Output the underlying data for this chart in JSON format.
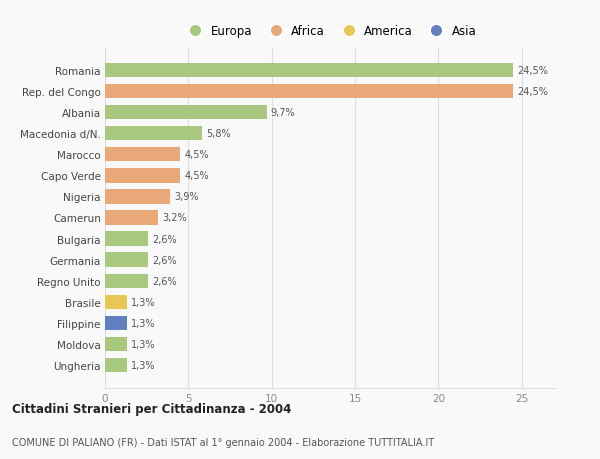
{
  "countries": [
    "Romania",
    "Rep. del Congo",
    "Albania",
    "Macedonia d/N.",
    "Marocco",
    "Capo Verde",
    "Nigeria",
    "Camerun",
    "Bulgaria",
    "Germania",
    "Regno Unito",
    "Brasile",
    "Filippine",
    "Moldova",
    "Ungheria"
  ],
  "values": [
    24.5,
    24.5,
    9.7,
    5.8,
    4.5,
    4.5,
    3.9,
    3.2,
    2.6,
    2.6,
    2.6,
    1.3,
    1.3,
    1.3,
    1.3
  ],
  "labels": [
    "24,5%",
    "24,5%",
    "9,7%",
    "5,8%",
    "4,5%",
    "4,5%",
    "3,9%",
    "3,2%",
    "2,6%",
    "2,6%",
    "2,6%",
    "1,3%",
    "1,3%",
    "1,3%",
    "1,3%"
  ],
  "continents": [
    "Europa",
    "Africa",
    "Europa",
    "Europa",
    "Africa",
    "Africa",
    "Africa",
    "Africa",
    "Europa",
    "Europa",
    "Europa",
    "America",
    "Asia",
    "Europa",
    "Europa"
  ],
  "continent_colors": {
    "Europa": "#a8c880",
    "Africa": "#e8a878",
    "America": "#e8c855",
    "Asia": "#6080c0"
  },
  "legend_order": [
    "Europa",
    "Africa",
    "America",
    "Asia"
  ],
  "title": "Cittadini Stranieri per Cittadinanza - 2004",
  "subtitle": "COMUNE DI PALIANO (FR) - Dati ISTAT al 1° gennaio 2004 - Elaborazione TUTTITALIA.IT",
  "xlim": [
    0,
    27
  ],
  "xticks": [
    0,
    5,
    10,
    15,
    20,
    25
  ],
  "background_color": "#f9f9f9",
  "grid_color": "#dddddd",
  "bar_height": 0.68
}
